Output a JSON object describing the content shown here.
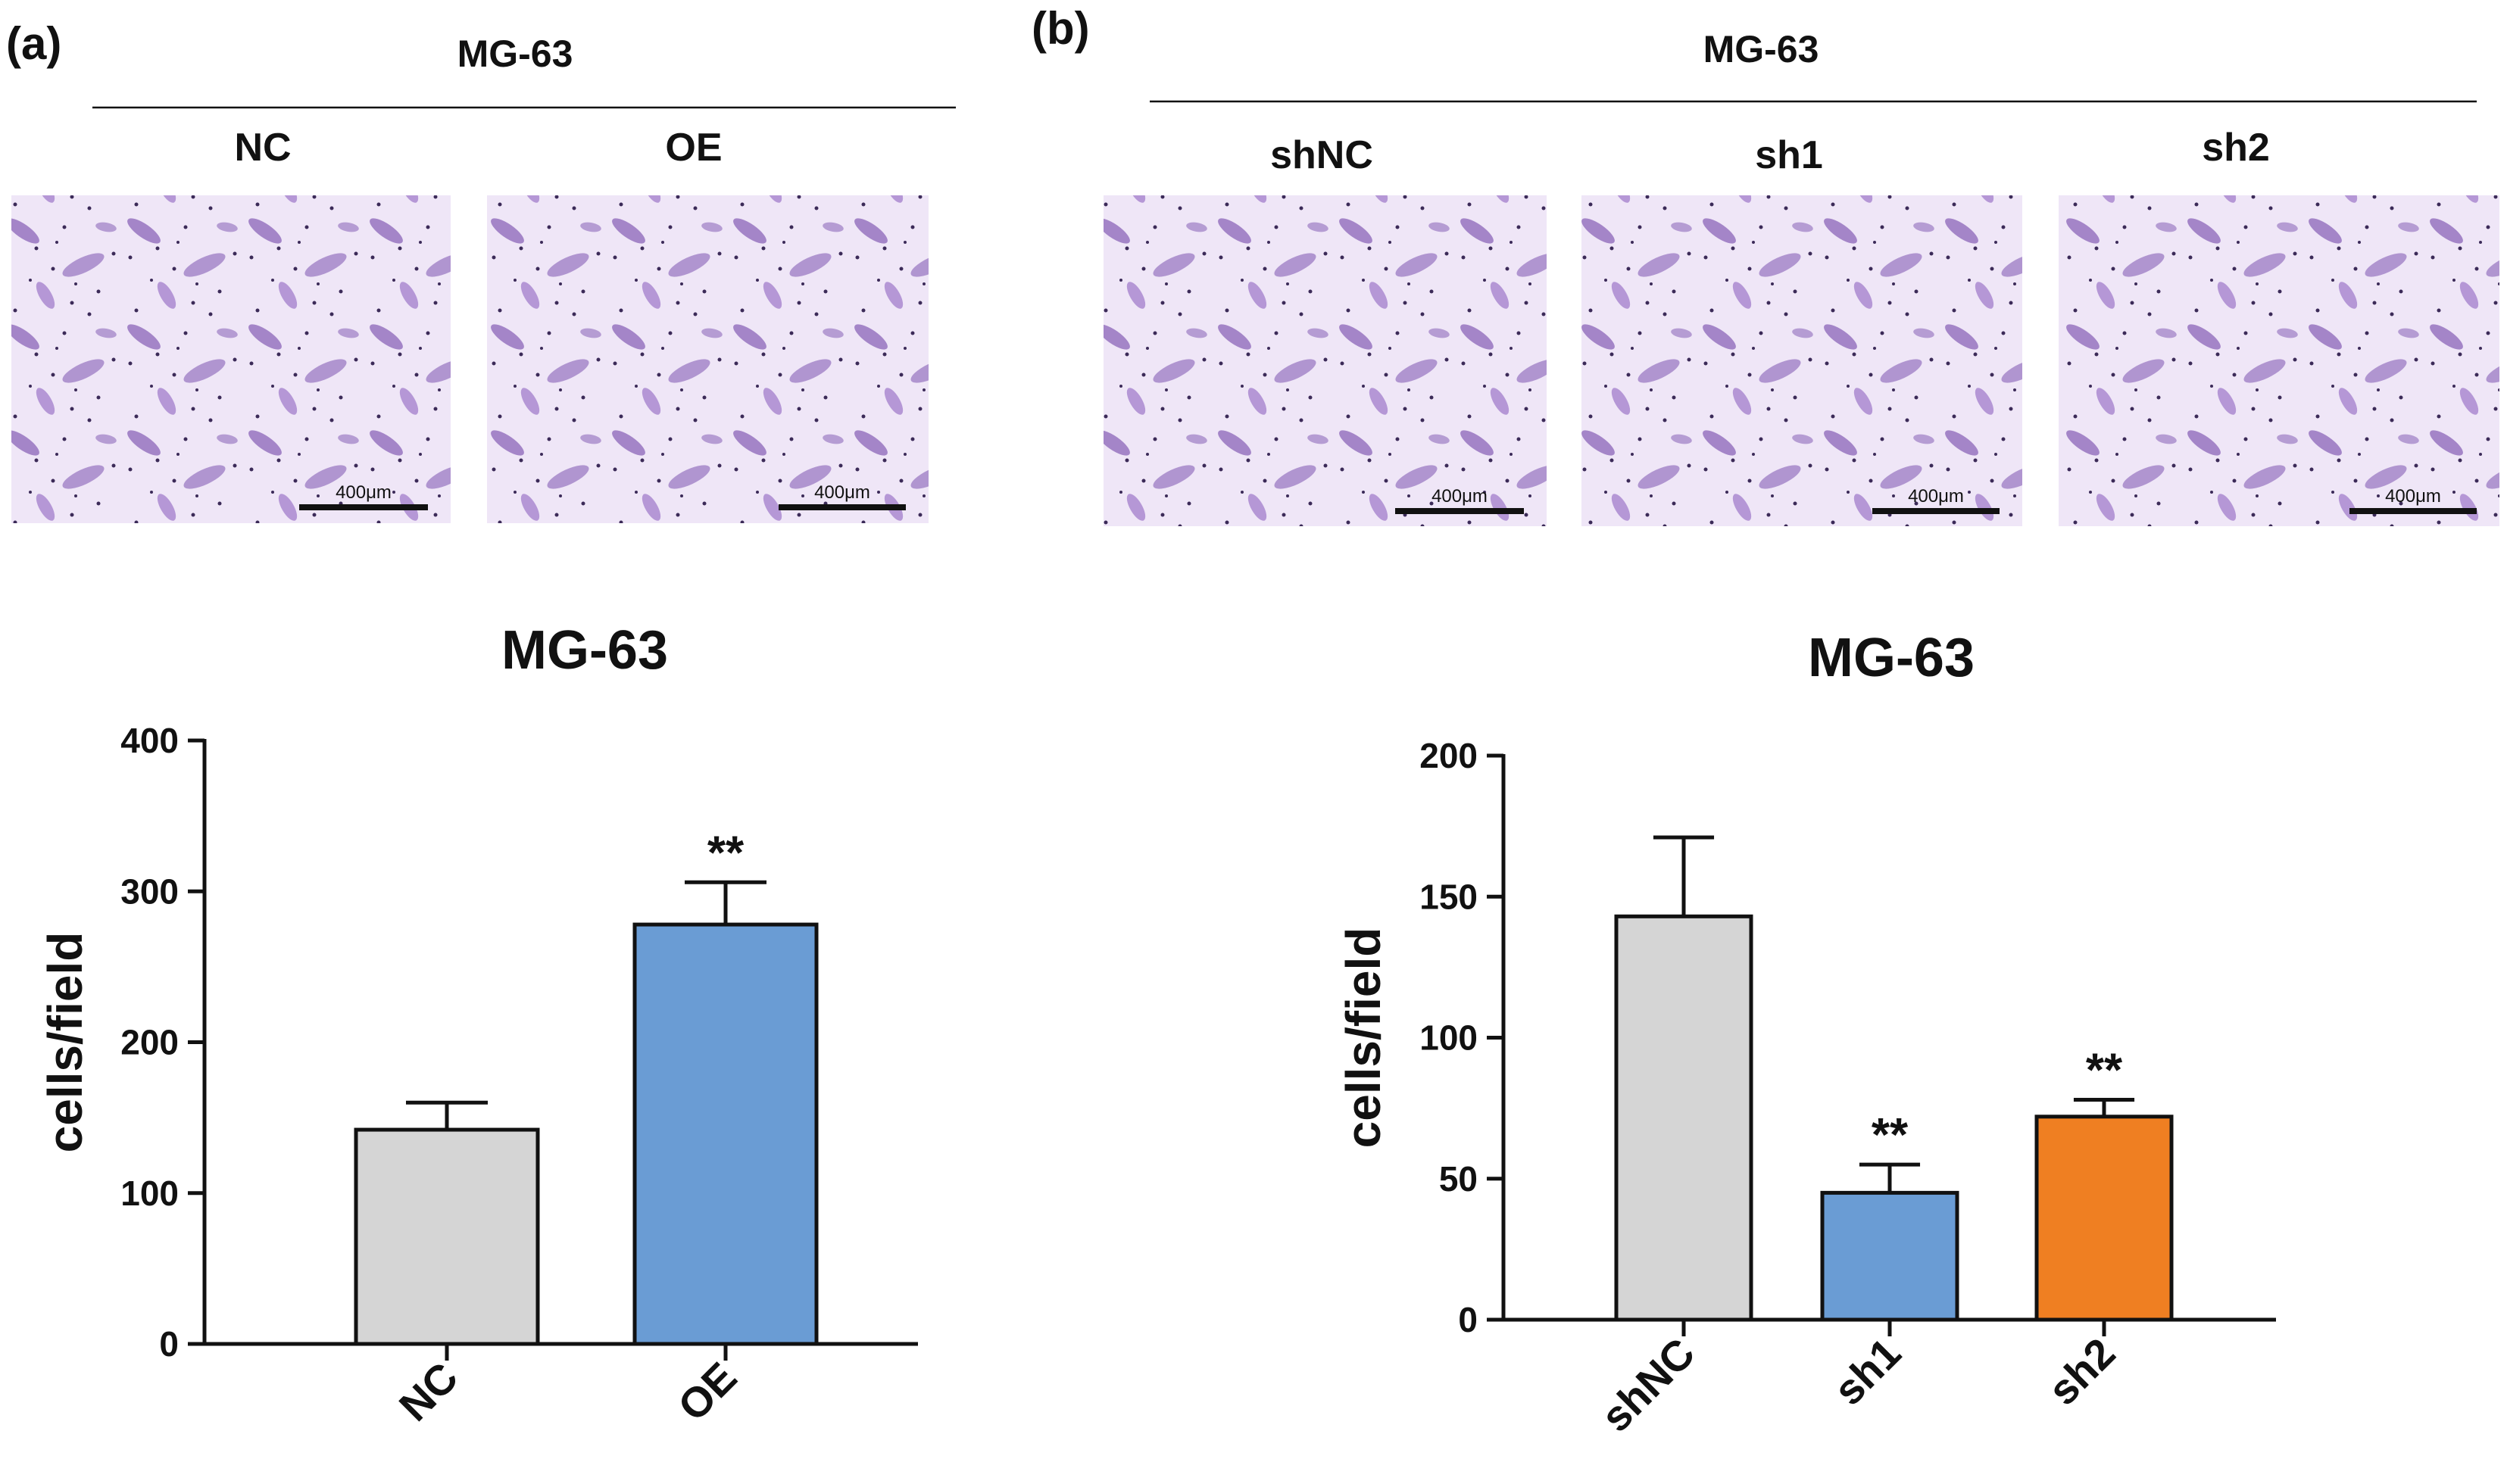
{
  "panels": [
    {
      "label": "(a)",
      "cell_line": "MG-63",
      "groups": [
        "NC",
        "OE"
      ],
      "scale_bar": "400μm"
    },
    {
      "label": "(b)",
      "cell_line": "MG-63",
      "groups": [
        "shNC",
        "sh1",
        "sh2"
      ],
      "scale_bar": "400μm"
    }
  ],
  "colors": {
    "gray": "#d5d5d5",
    "blue": "#6a9cd4",
    "orange": "#ef7f22",
    "axis": "#111111",
    "stain_light": "#efe6f7",
    "stain_cell": "#7c52b0",
    "stain_dot": "#3b2a58"
  },
  "chart_data": [
    {
      "type": "bar",
      "title": "MG-63",
      "xlabel": "",
      "ylabel": "cells/field",
      "categories": [
        "NC",
        "OE"
      ],
      "values": [
        142,
        278
      ],
      "errors": [
        18,
        28
      ],
      "significance": [
        "",
        "**"
      ],
      "bar_colors": [
        "#d5d5d5",
        "#6a9cd4"
      ],
      "ylim": [
        0,
        400
      ],
      "yticks": [
        0,
        100,
        200,
        300,
        400
      ],
      "ytick_labels": [
        "0",
        "100",
        "200",
        "300",
        "400"
      ],
      "grid": false
    },
    {
      "type": "bar",
      "title": "MG-63",
      "xlabel": "",
      "ylabel": "cells/field",
      "categories": [
        "shNC",
        "sh1",
        "sh2"
      ],
      "values": [
        143,
        45,
        72
      ],
      "errors": [
        28,
        10,
        6
      ],
      "significance": [
        "",
        "**",
        "**"
      ],
      "bar_colors": [
        "#d5d5d5",
        "#6a9cd4",
        "#ef7f22"
      ],
      "ylim": [
        0,
        200
      ],
      "yticks": [
        0,
        50,
        100,
        150,
        200
      ],
      "ytick_labels": [
        "0",
        "50",
        "100",
        "150",
        "200"
      ],
      "grid": false
    }
  ]
}
